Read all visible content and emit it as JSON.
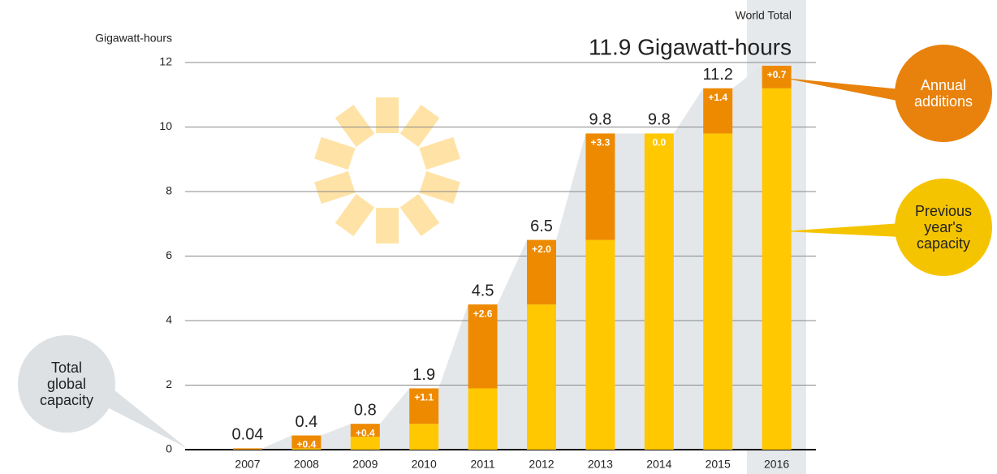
{
  "chart_data": {
    "type": "stacked-bar",
    "title": "World Total",
    "headline": "11.9 Gigawatt-hours",
    "y_label": "Gigawatt-hours",
    "annotation": "Total global capacity",
    "categories": [
      "2007",
      "2008",
      "2009",
      "2010",
      "2011",
      "2012",
      "2013",
      "2014",
      "2015",
      "2016"
    ],
    "series": [
      {
        "name": "Previous year's capacity",
        "color": "#ffc800",
        "values": [
          0,
          0.04,
          0.4,
          0.8,
          1.9,
          4.5,
          6.5,
          9.8,
          9.8,
          11.2
        ]
      },
      {
        "name": "Annual additions",
        "color": "#ee8a00",
        "values": [
          0.04,
          0.4,
          0.4,
          1.1,
          2.6,
          2.0,
          3.3,
          0.0,
          1.4,
          0.7
        ],
        "value_labels": [
          null,
          "+0.4",
          "+0.4",
          "+1.1",
          "+2.6",
          "+2.0",
          "+3.3",
          "0.0",
          "+1.4",
          "+0.7"
        ]
      }
    ],
    "totals": [
      0.04,
      0.4,
      0.8,
      1.9,
      4.5,
      6.5,
      9.8,
      9.8,
      11.2,
      null
    ],
    "ylim": [
      0,
      12
    ],
    "yticks": [
      0,
      2,
      4,
      6,
      8,
      10,
      12
    ],
    "grid": true
  }
}
